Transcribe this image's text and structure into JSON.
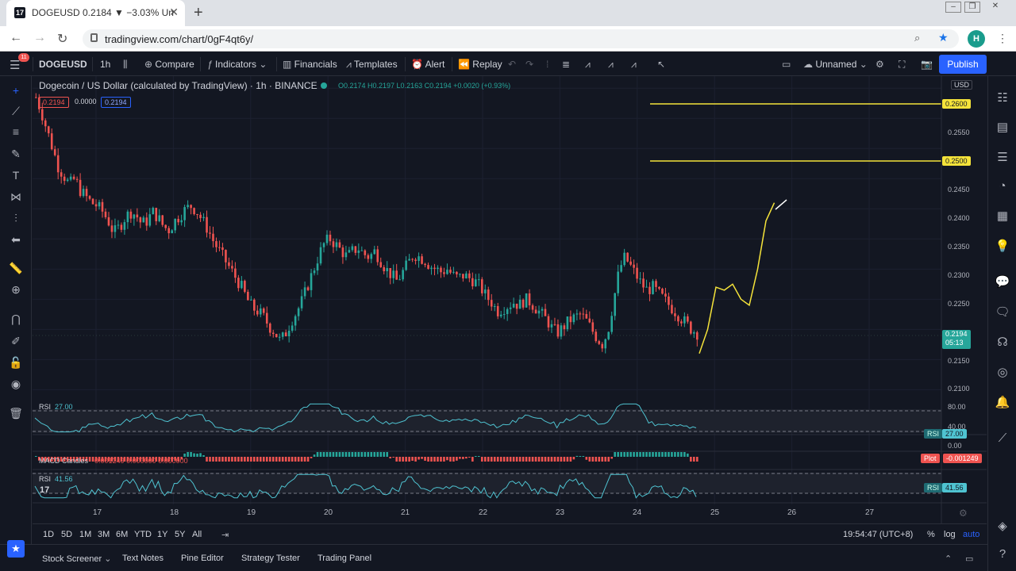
{
  "browser": {
    "tab_title": "DOGEUSD 0.2184 ▼ −3.03% Un",
    "tab_favicon": "17",
    "url": "tradingview.com/chart/0gF4qt6y/",
    "avatar_letter": "H"
  },
  "toolbar": {
    "symbol": "DOGEUSD",
    "interval": "1h",
    "compare": "Compare",
    "indicators": "Indicators",
    "financials": "Financials",
    "templates": "Templates",
    "alert": "Alert",
    "replay": "Replay",
    "layout_name": "Unnamed",
    "publish": "Publish",
    "notification_count": "11"
  },
  "legend": {
    "title": "Dogecoin / US Dollar (calculated by TradingView) · 1h · BINANCE",
    "ohlc": "O0.2174 H0.2197 L0.2163 C0.2194 +0.0020 (+0.93%)",
    "bid": "0.2194",
    "spread": "0.0000",
    "ask": "0.2194"
  },
  "price_axis": {
    "currency": "USD",
    "labels": [
      "0.2550",
      "0.2450",
      "0.2400",
      "0.2350",
      "0.2300",
      "0.2250",
      "0.2150",
      "0.2100"
    ],
    "level_high": "0.2600",
    "level_low": "0.2500",
    "last_price": "0.2194",
    "countdown": "05:13"
  },
  "panels": {
    "rsi1_label": "RSI",
    "rsi1_value": "27.00",
    "rsi_axis": [
      "80.00",
      "40.00",
      "0.00"
    ],
    "macd_label": "MACD Candles",
    "macd_values": "-0.001249  0.000000  0.000000",
    "macd_tag_name": "Plot",
    "macd_tag_value": "-0.001249",
    "rsi2_label": "RSI",
    "rsi2_value": "41.56",
    "rsi_tag_name": "RSI"
  },
  "time_axis": [
    "17",
    "18",
    "19",
    "20",
    "21",
    "22",
    "23",
    "24",
    "25",
    "26",
    "27"
  ],
  "ranges": [
    "1D",
    "5D",
    "1M",
    "3M",
    "6M",
    "YTD",
    "1Y",
    "5Y",
    "All"
  ],
  "clock": "19:54:47 (UTC+8)",
  "scale_opts": [
    "%",
    "log",
    "auto"
  ],
  "bottom_tabs": [
    "Stock Screener",
    "Text Notes",
    "Pine Editor",
    "Strategy Tester",
    "Trading Panel"
  ],
  "colors": {
    "up": "#26a69a",
    "down": "#ef5350",
    "level": "#f5e33a",
    "rsi": "#4fc3d1",
    "accent": "#2962ff"
  },
  "chart_data": {
    "type": "candlestick",
    "ylim": [
      0.209,
      0.262
    ],
    "close_path": [
      0.2585,
      0.256,
      0.253,
      0.25,
      0.247,
      0.2455,
      0.244,
      0.245,
      0.243,
      0.242,
      0.241,
      0.2405,
      0.2395,
      0.238,
      0.236,
      0.237,
      0.2385,
      0.2395,
      0.239,
      0.2375,
      0.238,
      0.2395,
      0.2385,
      0.237,
      0.2365,
      0.238,
      0.239,
      0.24,
      0.2405,
      0.2395,
      0.238,
      0.2365,
      0.2345,
      0.233,
      0.2315,
      0.23,
      0.2285,
      0.227,
      0.225,
      0.2235,
      0.223,
      0.222,
      0.2205,
      0.2195,
      0.218,
      0.2195,
      0.2215,
      0.223,
      0.225,
      0.2275,
      0.23,
      0.2325,
      0.2345,
      0.235,
      0.234,
      0.233,
      0.232,
      0.233,
      0.2335,
      0.2325,
      0.232,
      0.233,
      0.2315,
      0.23,
      0.229,
      0.228,
      0.2295,
      0.231,
      0.2325,
      0.232,
      0.2315,
      0.2305,
      0.23,
      0.2295,
      0.23,
      0.229,
      0.2285,
      0.229,
      0.2285,
      0.228,
      0.227,
      0.2255,
      0.2245,
      0.223,
      0.2235,
      0.224,
      0.2245,
      0.224,
      0.225,
      0.2245,
      0.2235,
      0.2225,
      0.2215,
      0.22,
      0.2195,
      0.2205,
      0.2215,
      0.222,
      0.2225,
      0.2215,
      0.22,
      0.2185,
      0.2175,
      0.22,
      0.225,
      0.23,
      0.232,
      0.2305,
      0.229,
      0.2275,
      0.2265,
      0.227,
      0.226,
      0.225,
      0.224,
      0.223,
      0.222,
      0.221,
      0.22,
      0.2194
    ],
    "drawing_path": [
      [
        0.216,
        0
      ],
      [
        0.22,
        1
      ],
      [
        0.227,
        2
      ],
      [
        0.2265,
        3
      ],
      [
        0.2275,
        4
      ],
      [
        0.225,
        5
      ],
      [
        0.224,
        6
      ],
      [
        0.23,
        7
      ],
      [
        0.238,
        8
      ],
      [
        0.241,
        9
      ]
    ]
  }
}
